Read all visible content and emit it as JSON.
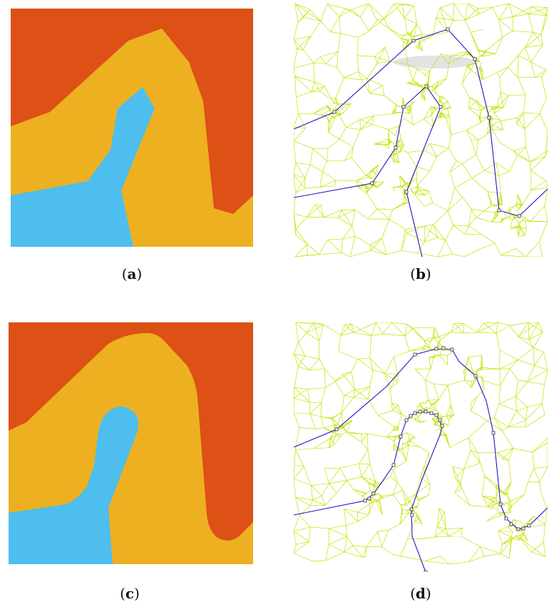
{
  "figure": {
    "panels": [
      {
        "id": "a",
        "caption_open": "(",
        "caption_letter": "a",
        "caption_close": ")",
        "kind": "segmentation"
      },
      {
        "id": "b",
        "caption_open": "(",
        "caption_letter": "b",
        "caption_close": ")",
        "kind": "mesh"
      },
      {
        "id": "c",
        "caption_open": "(",
        "caption_letter": "c",
        "caption_close": ")",
        "kind": "segmentation-smooth"
      },
      {
        "id": "d",
        "caption_open": "(",
        "caption_letter": "d",
        "caption_close": ")",
        "kind": "mesh-smooth"
      }
    ],
    "colors": {
      "region_top": "#DD5016",
      "region_middle": "#EDB021",
      "region_bottom": "#4DBEEE",
      "mesh_edge": "#C8E000",
      "boundary_line": "#1A1AC8",
      "vertex_marker": "#333333"
    }
  }
}
